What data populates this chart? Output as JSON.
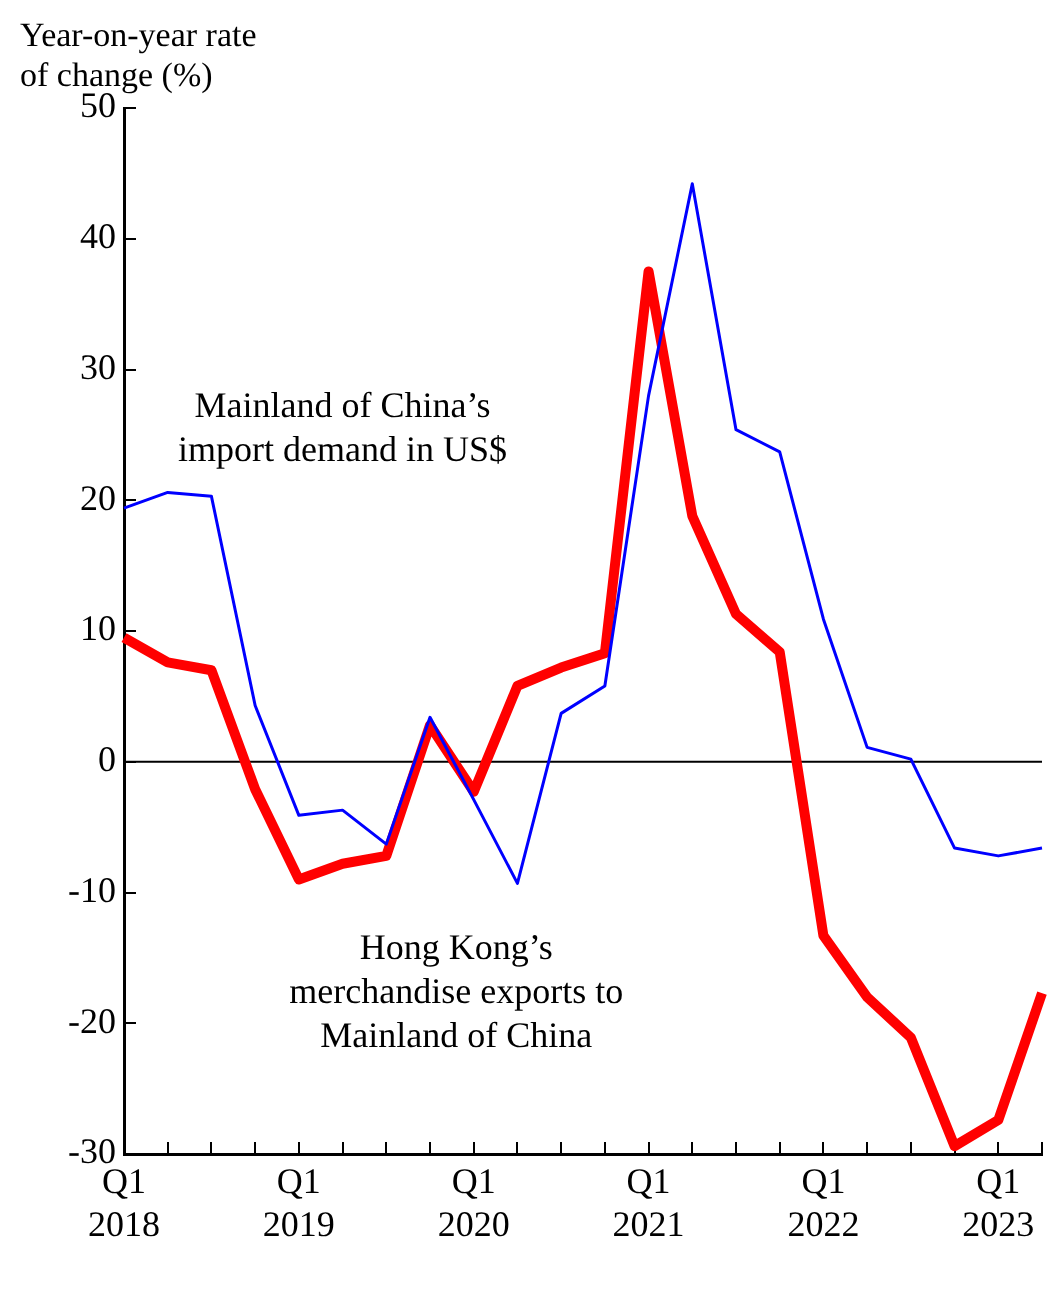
{
  "chart_data": {
    "type": "line",
    "ylabel": "Year-on-year rate of change (%)",
    "categories": [
      "Q1 2018",
      null,
      null,
      null,
      "Q1 2019",
      null,
      null,
      null,
      "Q1 2020",
      null,
      null,
      null,
      "Q1 2021",
      null,
      null,
      null,
      "Q1 2022",
      null,
      null,
      null,
      "Q1 2023",
      null
    ],
    "series": [
      {
        "name": "Mainland of China’s import demand in US$",
        "color": "#0000ff",
        "values": [
          19.4,
          20.6,
          20.3,
          4.3,
          -4.1,
          -3.7,
          -6.3,
          3.4,
          -2.9,
          -9.3,
          3.7,
          5.8,
          28,
          44.2,
          25.4,
          23.7,
          10.9,
          1.1,
          0.2,
          -6.6,
          -7.2,
          -6.6
        ]
      },
      {
        "name": "Hong Kong’s merchandise exports to Mainland of China",
        "color": "#ff0000",
        "values": [
          9.5,
          7.6,
          7.0,
          -2.1,
          -9.0,
          -7.8,
          -7.2,
          2.8,
          -2.3,
          5.8,
          7.2,
          8.3,
          37.5,
          18.8,
          11.3,
          8.4,
          -13.3,
          -18.0,
          -21.1,
          -29.4,
          -27.4,
          -17.7
        ]
      }
    ],
    "ylim": [
      -30,
      50
    ],
    "yticks": [
      -30,
      -20,
      -10,
      0,
      10,
      20,
      30,
      40,
      50
    ],
    "ref_lines": [
      {
        "axis": "y",
        "value": 0,
        "color": "#000000"
      }
    ],
    "grid": false,
    "legend": false
  }
}
